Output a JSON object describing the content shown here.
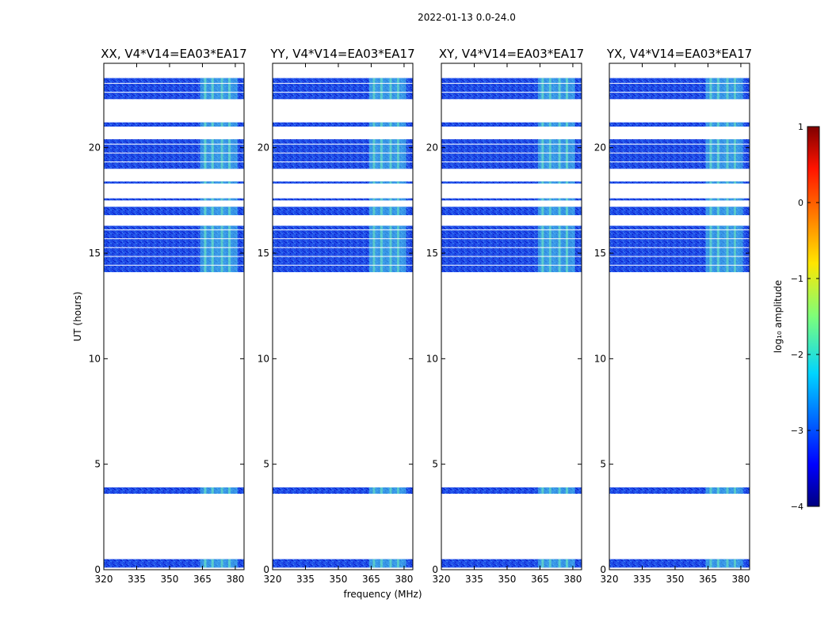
{
  "figure_title": "2022-01-13 0.0-24.0",
  "chart_data": {
    "type": "heatmap",
    "title": "2022-01-13 0.0-24.0",
    "xlabel": "frequency (MHz)",
    "ylabel": "UT (hours)",
    "xlim": [
      320,
      384
    ],
    "ylim": [
      0,
      24
    ],
    "x_ticks": [
      320,
      335,
      350,
      365,
      380
    ],
    "y_ticks": [
      0,
      5,
      10,
      15,
      20
    ],
    "panels": [
      {
        "title": "XX, V4*V14=EA03*EA17"
      },
      {
        "title": "YY, V4*V14=EA03*EA17"
      },
      {
        "title": "XY, V4*V14=EA03*EA17"
      },
      {
        "title": "YX, V4*V14=EA03*EA17"
      }
    ],
    "data_time_ranges_hours": [
      [
        0.1,
        0.5
      ],
      [
        3.6,
        3.9
      ],
      [
        14.1,
        16.3
      ],
      [
        16.8,
        17.2
      ],
      [
        17.5,
        17.6
      ],
      [
        18.3,
        18.4
      ],
      [
        19.0,
        20.4
      ],
      [
        21.0,
        21.2
      ],
      [
        22.3,
        23.3
      ]
    ],
    "bright_band_mhz": [
      364,
      381
    ],
    "colorbar": {
      "label": "log₁₀ amplitude",
      "min": -4,
      "max": 1,
      "ticks": [
        "−4",
        "−3",
        "−2",
        "−1",
        "0",
        "1"
      ]
    }
  }
}
